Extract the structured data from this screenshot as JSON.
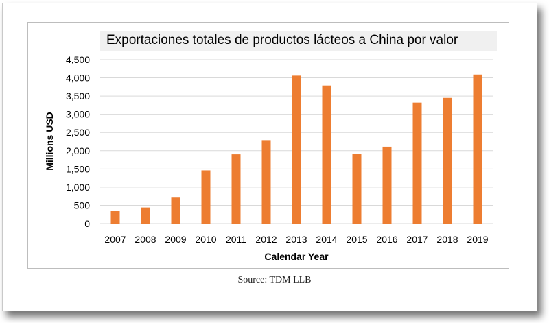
{
  "chart_data": {
    "type": "bar",
    "title": "Exportaciones totales de productos lácteos a China por valor",
    "xlabel": "Calendar Year",
    "ylabel": "Millions USD",
    "categories": [
      "2007",
      "2008",
      "2009",
      "2010",
      "2011",
      "2012",
      "2013",
      "2014",
      "2015",
      "2016",
      "2017",
      "2018",
      "2019"
    ],
    "values": [
      350,
      440,
      730,
      1460,
      1900,
      2290,
      4060,
      3790,
      1910,
      2110,
      3320,
      3450,
      4090
    ],
    "yticks": [
      "0",
      "500",
      "1,000",
      "1,500",
      "2,000",
      "2,500",
      "3,000",
      "3,500",
      "4,000",
      "4,500"
    ],
    "ylim": [
      0,
      4500
    ],
    "grid": true,
    "bar_color": "#ed7d31",
    "source": "Source: TDM LLB"
  }
}
